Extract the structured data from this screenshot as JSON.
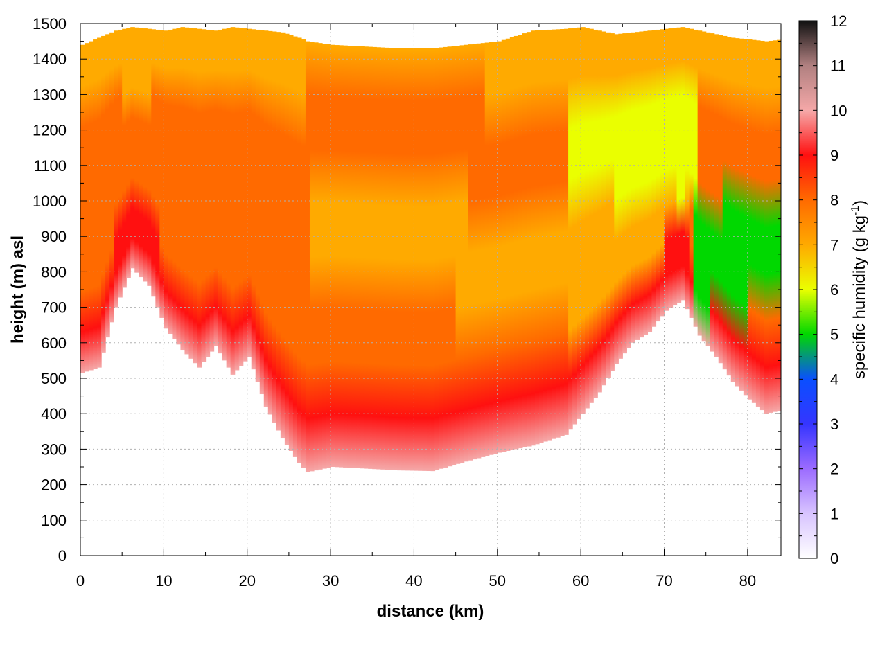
{
  "chart_data": {
    "type": "heatmap",
    "title": "",
    "xlabel": "distance (km)",
    "ylabel": "height (m) asl",
    "colorbar": {
      "label": "specific humidity (g kg",
      "label_sup": "-1",
      "label_end": ")",
      "range": [
        0,
        12
      ],
      "ticks": [
        "0",
        "1",
        "2",
        "3",
        "4",
        "5",
        "6",
        "7",
        "8",
        "9",
        "10",
        "11",
        "12"
      ],
      "colors": [
        "#ffffff",
        "#d8c4ff",
        "#9b6bff",
        "#3535ff",
        "#0a4fff",
        "#00d800",
        "#eaff00",
        "#ffaa00",
        "#ff6a00",
        "#ff1010",
        "#f5a8a8",
        "#b08080",
        "#111111"
      ]
    },
    "x_range": [
      0,
      84
    ],
    "y_range": [
      0,
      1500
    ],
    "x_ticks": [
      "0",
      "10",
      "20",
      "30",
      "40",
      "50",
      "60",
      "70",
      "80"
    ],
    "y_ticks": [
      "0",
      "100",
      "200",
      "300",
      "400",
      "500",
      "600",
      "700",
      "800",
      "900",
      "1000",
      "1100",
      "1200",
      "1300",
      "1400",
      "1500"
    ],
    "grid": true,
    "terrain_km": [
      0,
      2,
      4,
      6,
      8,
      10,
      12,
      14,
      16,
      18,
      20,
      22,
      24,
      26,
      27,
      30,
      34,
      38,
      42,
      46,
      50,
      54,
      58,
      60,
      62,
      64,
      66,
      68,
      70,
      72,
      74,
      76,
      78,
      80,
      82,
      84
    ],
    "terrain_m": [
      515,
      530,
      700,
      810,
      760,
      640,
      580,
      530,
      590,
      510,
      560,
      420,
      330,
      260,
      235,
      250,
      245,
      240,
      238,
      265,
      290,
      310,
      340,
      400,
      460,
      540,
      600,
      630,
      690,
      720,
      620,
      560,
      490,
      440,
      400,
      410
    ],
    "top_m": [
      1440,
      1460,
      1480,
      1490,
      1485,
      1480,
      1490,
      1485,
      1480,
      1490,
      1485,
      1480,
      1475,
      1460,
      1450,
      1440,
      1435,
      1430,
      1430,
      1440,
      1450,
      1480,
      1485,
      1490,
      1480,
      1470,
      1475,
      1480,
      1485,
      1490,
      1480,
      1470,
      1460,
      1455,
      1450,
      1455
    ]
  }
}
